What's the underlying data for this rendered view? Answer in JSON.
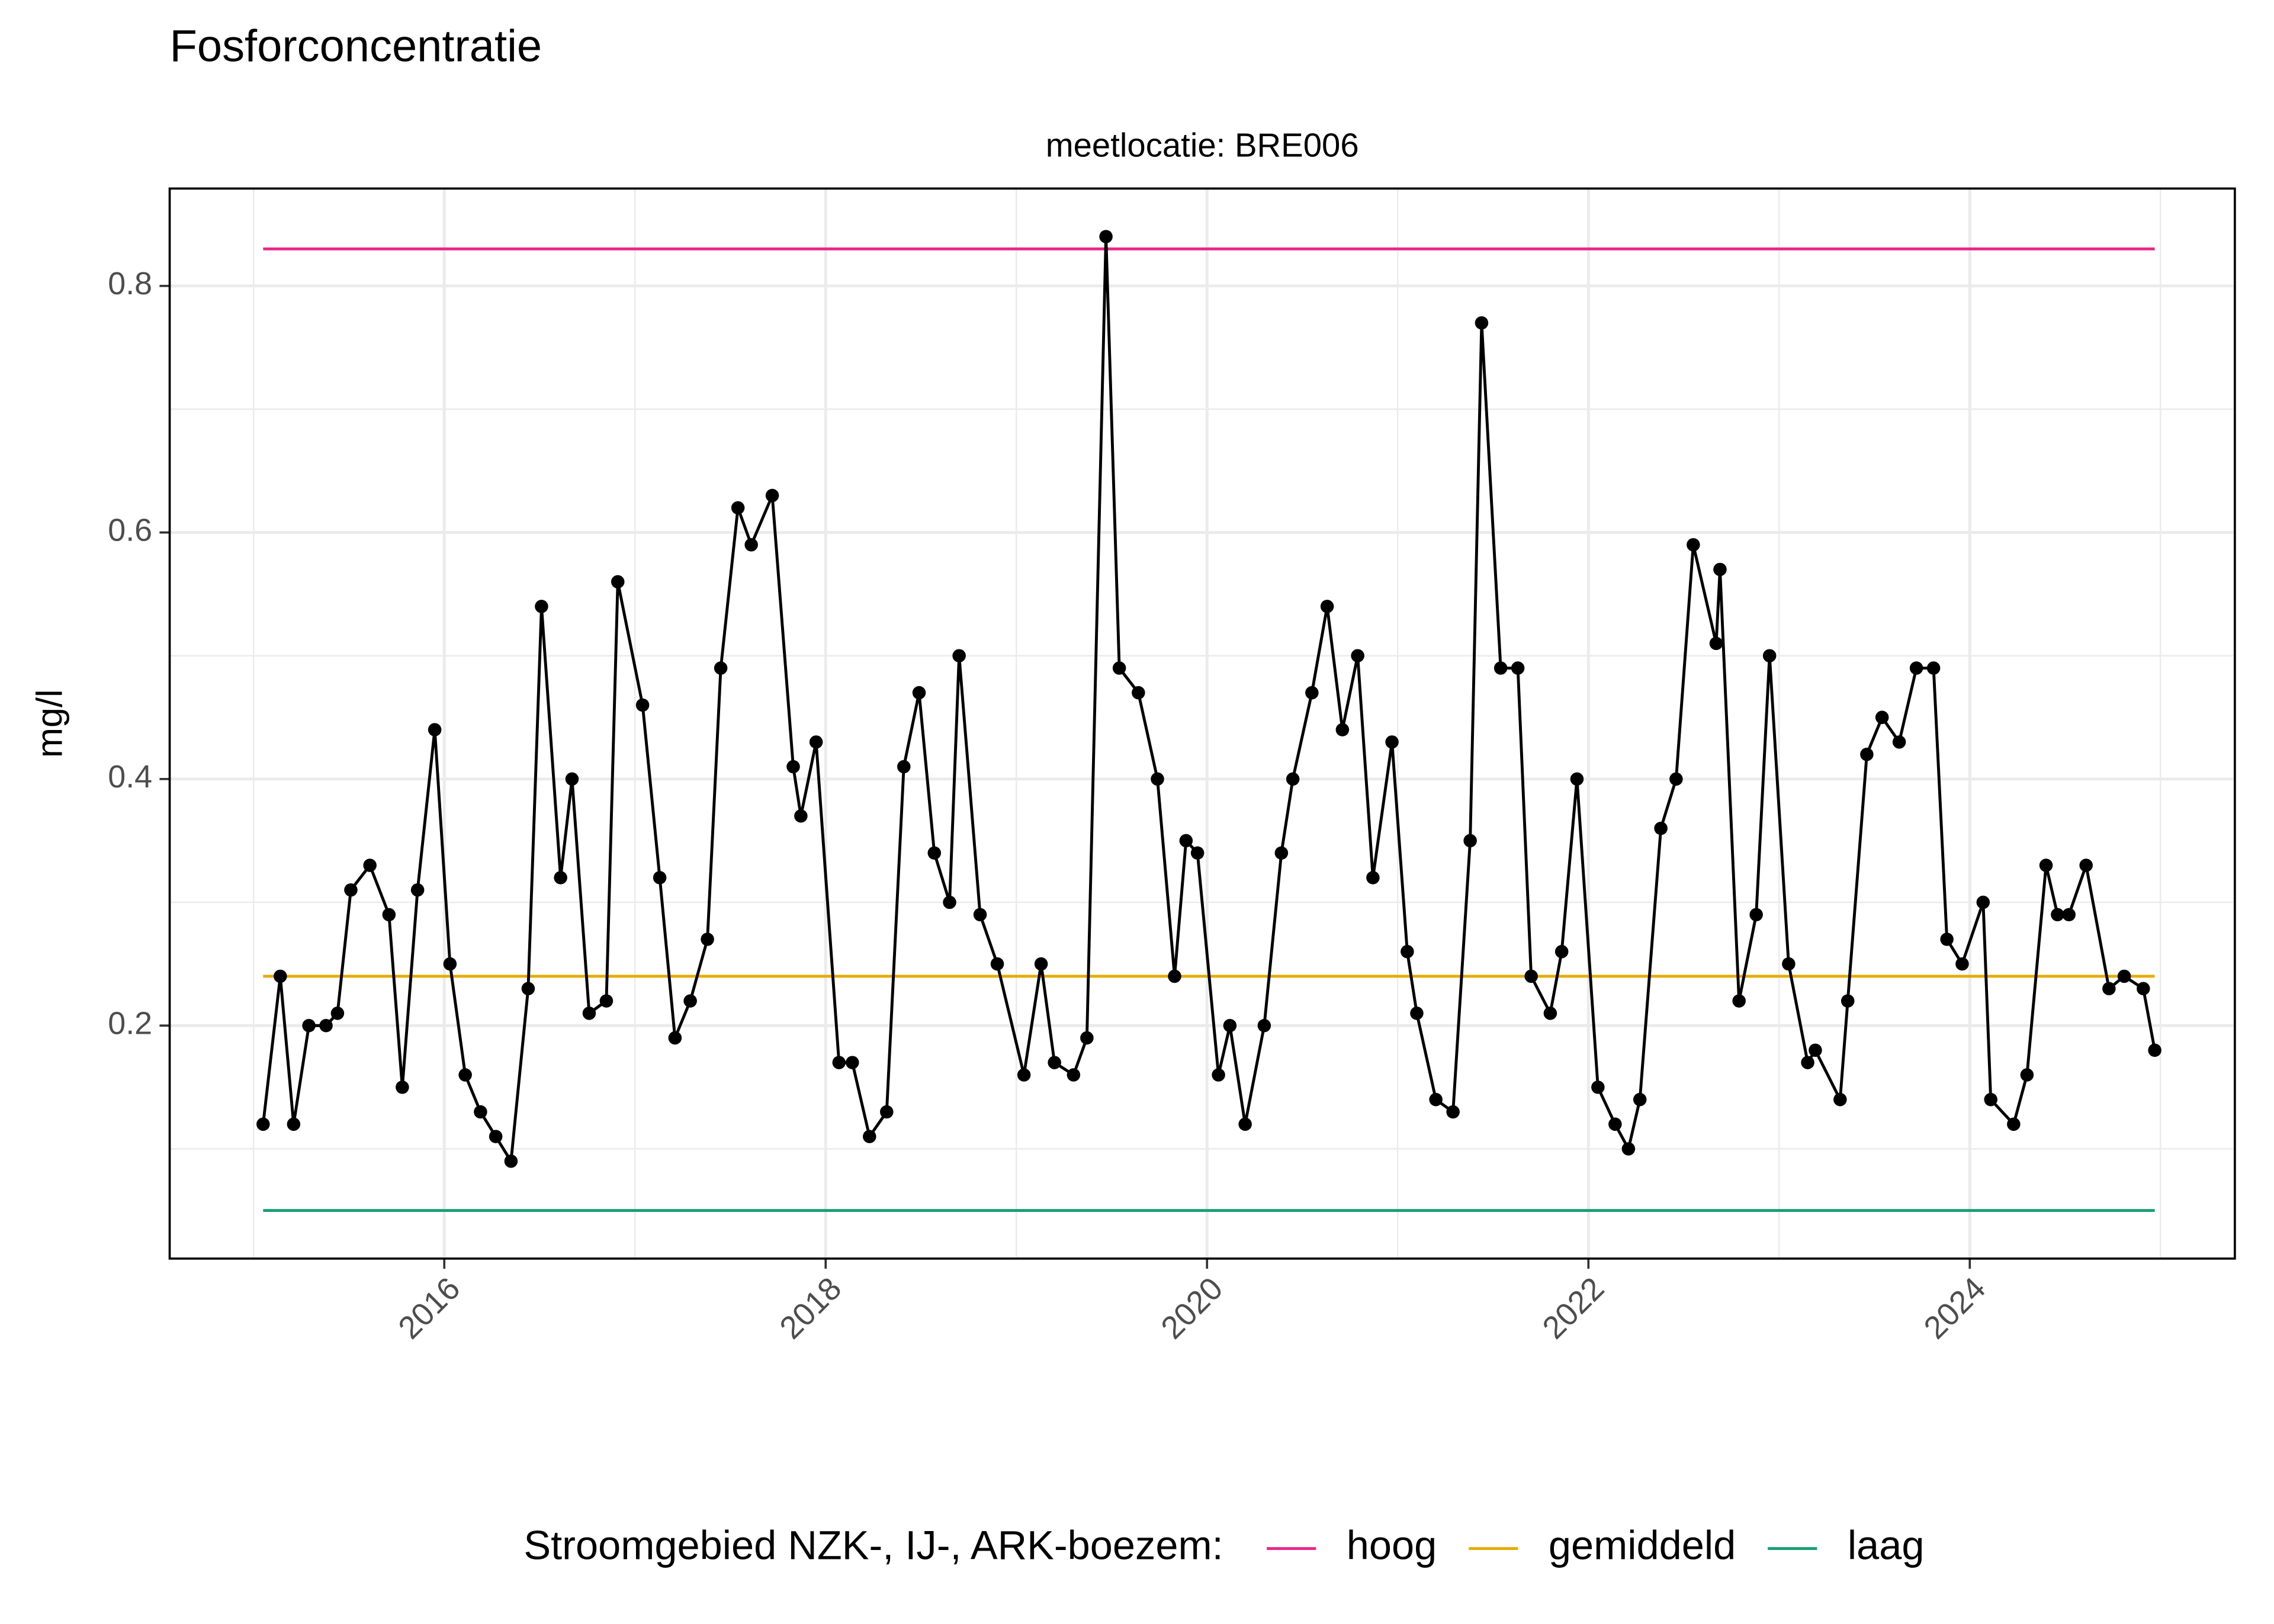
{
  "chart_data": {
    "type": "line",
    "title": "Fosforconcentratie",
    "subtitle": "meetlocatie: BRE006",
    "y_label": "mg/l",
    "legend_title": "Stroomgebied NZK-, IJ-, ARK-boezem:",
    "legend_position": "bottom",
    "color": "#000000",
    "markers": true,
    "x": [
      2015.05,
      2015.14,
      2015.21,
      2015.29,
      2015.38,
      2015.44,
      2015.51,
      2015.61,
      2015.71,
      2015.78,
      2015.86,
      2015.95,
      2016.03,
      2016.11,
      2016.19,
      2016.27,
      2016.35,
      2016.44,
      2016.51,
      2016.61,
      2016.67,
      2016.76,
      2016.85,
      2016.91,
      2017.04,
      2017.13,
      2017.21,
      2017.29,
      2017.38,
      2017.45,
      2017.54,
      2017.61,
      2017.72,
      2017.83,
      2017.87,
      2017.95,
      2018.07,
      2018.14,
      2018.23,
      2018.32,
      2018.41,
      2018.49,
      2018.57,
      2018.65,
      2018.7,
      2018.81,
      2018.9,
      2019.04,
      2019.13,
      2019.2,
      2019.3,
      2019.37,
      2019.47,
      2019.54,
      2019.64,
      2019.74,
      2019.83,
      2019.89,
      2019.95,
      2020.06,
      2020.12,
      2020.2,
      2020.3,
      2020.39,
      2020.45,
      2020.55,
      2020.63,
      2020.71,
      2020.79,
      2020.87,
      2020.97,
      2021.05,
      2021.1,
      2021.2,
      2021.29,
      2021.38,
      2021.44,
      2021.54,
      2021.63,
      2021.7,
      2021.8,
      2021.86,
      2021.94,
      2022.05,
      2022.14,
      2022.21,
      2022.27,
      2022.38,
      2022.46,
      2022.55,
      2022.67,
      2022.69,
      2022.79,
      2022.88,
      2022.95,
      2023.05,
      2023.15,
      2023.19,
      2023.32,
      2023.36,
      2023.46,
      2023.54,
      2023.63,
      2023.72,
      2023.81,
      2023.88,
      2023.96,
      2024.07,
      2024.11,
      2024.23,
      2024.3,
      2024.4,
      2024.46,
      2024.52,
      2024.61,
      2024.73,
      2024.81,
      2024.91,
      2024.97
    ],
    "values": [
      0.12,
      0.24,
      0.12,
      0.2,
      0.2,
      0.21,
      0.31,
      0.33,
      0.29,
      0.15,
      0.31,
      0.44,
      0.25,
      0.16,
      0.13,
      0.11,
      0.09,
      0.23,
      0.54,
      0.32,
      0.4,
      0.21,
      0.22,
      0.56,
      0.46,
      0.32,
      0.19,
      0.22,
      0.27,
      0.49,
      0.62,
      0.59,
      0.63,
      0.41,
      0.37,
      0.43,
      0.17,
      0.17,
      0.11,
      0.13,
      0.41,
      0.47,
      0.34,
      0.3,
      0.5,
      0.29,
      0.25,
      0.16,
      0.25,
      0.17,
      0.16,
      0.19,
      0.84,
      0.49,
      0.47,
      0.4,
      0.24,
      0.35,
      0.34,
      0.16,
      0.2,
      0.12,
      0.2,
      0.34,
      0.4,
      0.47,
      0.54,
      0.44,
      0.5,
      0.32,
      0.43,
      0.26,
      0.21,
      0.14,
      0.13,
      0.35,
      0.77,
      0.49,
      0.49,
      0.24,
      0.21,
      0.26,
      0.4,
      0.15,
      0.12,
      0.1,
      0.14,
      0.36,
      0.4,
      0.59,
      0.51,
      0.57,
      0.22,
      0.29,
      0.5,
      0.25,
      0.17,
      0.18,
      0.14,
      0.22,
      0.42,
      0.45,
      0.43,
      0.49,
      0.49,
      0.27,
      0.25,
      0.3,
      0.14,
      0.12,
      0.16,
      0.33,
      0.29,
      0.29,
      0.33,
      0.23,
      0.24,
      0.23,
      0.18
    ],
    "series": [
      {
        "name": "hoog",
        "color": "#e7298a",
        "x": [
          2015.05,
          2024.97
        ],
        "values": [
          0.83,
          0.83
        ]
      },
      {
        "name": "gemiddeld",
        "color": "#e6ab02",
        "x": [
          2015.05,
          2024.97
        ],
        "values": [
          0.24,
          0.24
        ]
      },
      {
        "name": "laag",
        "color": "#1b9e77",
        "x": [
          2015.05,
          2024.97
        ],
        "values": [
          0.05,
          0.05
        ]
      }
    ],
    "xlim": [
      2014.56,
      2025.39
    ],
    "ylim": [
      0.011,
      0.879
    ],
    "xticks": [
      2016,
      2018,
      2020,
      2022,
      2024
    ],
    "yticks": [
      0.2,
      0.4,
      0.6,
      0.8
    ],
    "x_minor_ticks": [
      2015,
      2017,
      2019,
      2021,
      2023,
      2025
    ],
    "y_minor_ticks": [
      0.1,
      0.3,
      0.5,
      0.7
    ],
    "grid": true
  }
}
